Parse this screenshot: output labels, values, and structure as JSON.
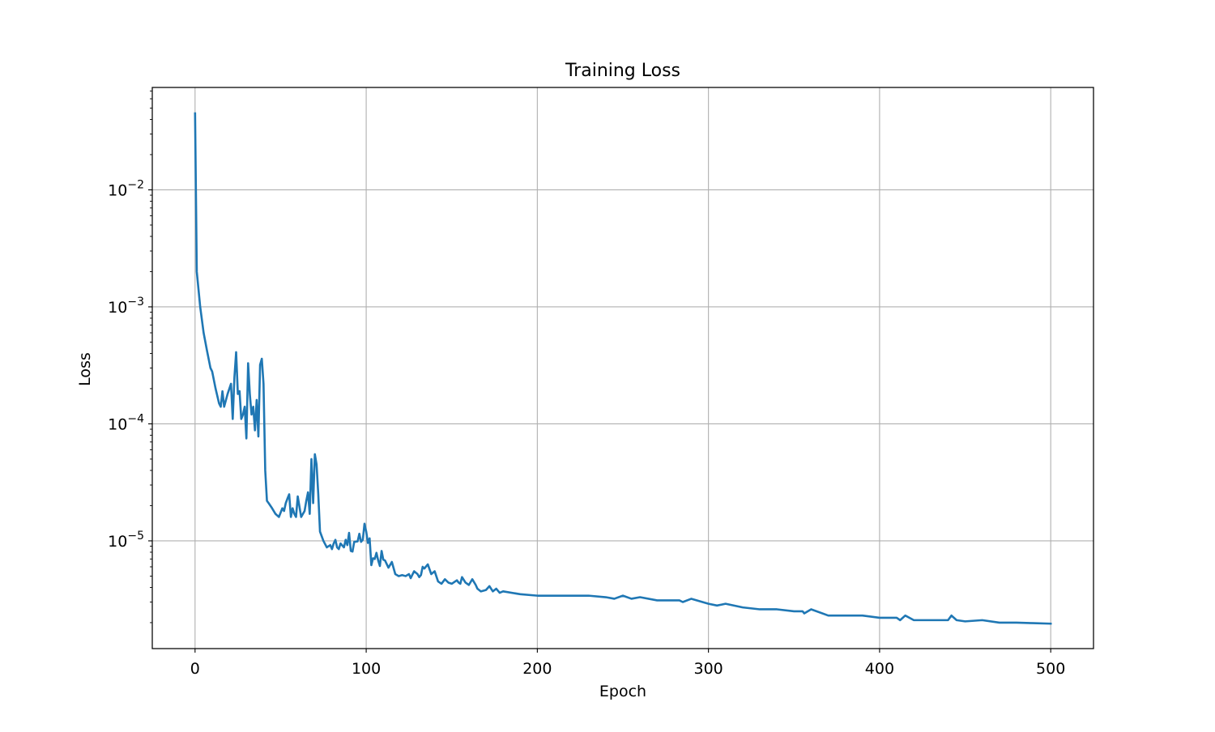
{
  "chart_data": {
    "type": "line",
    "title": "Training Loss",
    "xlabel": "Epoch",
    "ylabel": "Loss",
    "xlim": [
      -25,
      525
    ],
    "ylim": [
      1.2e-06,
      0.075
    ],
    "yscale": "log",
    "grid": true,
    "line_color": "#1f77b4",
    "x_ticks": [
      {
        "value": 0,
        "label": "0"
      },
      {
        "value": 100,
        "label": "100"
      },
      {
        "value": 200,
        "label": "200"
      },
      {
        "value": 300,
        "label": "300"
      },
      {
        "value": 400,
        "label": "400"
      },
      {
        "value": 500,
        "label": "500"
      }
    ],
    "y_ticks": [
      {
        "value": 0.01,
        "base": "10",
        "exp": "−2"
      },
      {
        "value": 0.001,
        "base": "10",
        "exp": "−3"
      },
      {
        "value": 0.0001,
        "base": "10",
        "exp": "−4"
      },
      {
        "value": 1e-05,
        "base": "10",
        "exp": "−5"
      }
    ],
    "series": [
      {
        "x": [
          0,
          1,
          3,
          5,
          7,
          9,
          10,
          12,
          14,
          15,
          16,
          17,
          19,
          21,
          22,
          23,
          24,
          25,
          26,
          27,
          28,
          29,
          30,
          31,
          32,
          33,
          34,
          35,
          36,
          37,
          38,
          39,
          40,
          41,
          42,
          43,
          45,
          47,
          49,
          51,
          52,
          53,
          54,
          55,
          56,
          57,
          58,
          59,
          60,
          62,
          64,
          65,
          66,
          67,
          68,
          69,
          70,
          71,
          72,
          73,
          75,
          77,
          79,
          80,
          81,
          82,
          83,
          84,
          85,
          87,
          88,
          89,
          90,
          91,
          92,
          93,
          95,
          96,
          97,
          98,
          99,
          100,
          101,
          102,
          103,
          104,
          105,
          106,
          107,
          108,
          109,
          110,
          111,
          113,
          115,
          117,
          119,
          121,
          123,
          125,
          126,
          128,
          130,
          131,
          132,
          133,
          134,
          136,
          138,
          140,
          142,
          144,
          146,
          148,
          150,
          152,
          153,
          154,
          155,
          156,
          158,
          160,
          162,
          164,
          165,
          167,
          170,
          172,
          174,
          176,
          178,
          180,
          190,
          200,
          210,
          220,
          230,
          240,
          245,
          250,
          255,
          260,
          270,
          280,
          283,
          285,
          290,
          300,
          305,
          310,
          320,
          330,
          340,
          350,
          355,
          356,
          360,
          370,
          380,
          390,
          400,
          410,
          412,
          415,
          420,
          430,
          440,
          442,
          445,
          450,
          460,
          470,
          480,
          490,
          500
        ],
        "y": [
          0.045,
          0.002,
          0.001,
          0.0006,
          0.00042,
          0.0003,
          0.00028,
          0.0002,
          0.00015,
          0.00014,
          0.00019,
          0.00014,
          0.00018,
          0.00022,
          0.00011,
          0.00025,
          0.00041,
          0.00018,
          0.00019,
          0.00011,
          0.00012,
          0.00014,
          7.5e-05,
          0.00033,
          0.00018,
          0.00012,
          0.00014,
          8.8e-05,
          0.00016,
          7.8e-05,
          0.00032,
          0.00036,
          0.00022,
          4e-05,
          2.2e-05,
          2.1e-05,
          1.9e-05,
          1.7e-05,
          1.6e-05,
          1.9e-05,
          1.8e-05,
          2.1e-05,
          2.3e-05,
          2.5e-05,
          1.6e-05,
          1.9e-05,
          1.7e-05,
          1.6e-05,
          2.4e-05,
          1.6e-05,
          1.8e-05,
          2.2e-05,
          2.6e-05,
          1.7e-05,
          5e-05,
          2.1e-05,
          5.5e-05,
          4.5e-05,
          2.5e-05,
          1.2e-05,
          1e-05,
          8.8e-06,
          9.2e-06,
          8.5e-06,
          9.5e-06,
          1.02e-05,
          8.8e-06,
          8.5e-06,
          9.5e-06,
          8.8e-06,
          1.02e-05,
          9.2e-06,
          1.17e-05,
          8.2e-06,
          8.1e-06,
          9.8e-06,
          9.9e-06,
          1.15e-05,
          9.8e-06,
          1.02e-05,
          1.4e-05,
          1.2e-05,
          9.6e-06,
          1.05e-05,
          6.2e-06,
          7.1e-06,
          7e-06,
          7.9e-06,
          6.8e-06,
          6.1e-06,
          8.2e-06,
          6.9e-06,
          6.8e-06,
          5.9e-06,
          6.6e-06,
          5.2e-06,
          5e-06,
          5.1e-06,
          5e-06,
          5.2e-06,
          4.8e-06,
          5.5e-06,
          5.2e-06,
          4.9e-06,
          5.1e-06,
          6e-06,
          5.8e-06,
          6.3e-06,
          5.2e-06,
          5.5e-06,
          4.5e-06,
          4.3e-06,
          4.7e-06,
          4.4e-06,
          4.3e-06,
          4.5e-06,
          4.6e-06,
          4.4e-06,
          4.3e-06,
          4.9e-06,
          4.4e-06,
          4.2e-06,
          4.7e-06,
          4.2e-06,
          3.9e-06,
          3.7e-06,
          3.8e-06,
          4.1e-06,
          3.7e-06,
          3.9e-06,
          3.6e-06,
          3.7e-06,
          3.5e-06,
          3.4e-06,
          3.4e-06,
          3.4e-06,
          3.4e-06,
          3.3e-06,
          3.2e-06,
          3.4e-06,
          3.2e-06,
          3.3e-06,
          3.1e-06,
          3.1e-06,
          3.1e-06,
          3e-06,
          3.2e-06,
          2.9e-06,
          2.8e-06,
          2.9e-06,
          2.7e-06,
          2.6e-06,
          2.6e-06,
          2.5e-06,
          2.5e-06,
          2.4e-06,
          2.6e-06,
          2.3e-06,
          2.3e-06,
          2.3e-06,
          2.2e-06,
          2.2e-06,
          2.1e-06,
          2.3e-06,
          2.1e-06,
          2.1e-06,
          2.1e-06,
          2.3e-06,
          2.1e-06,
          2.05e-06,
          2.1e-06,
          2e-06,
          2e-06,
          1.98e-06,
          1.96e-06
        ]
      }
    ]
  }
}
